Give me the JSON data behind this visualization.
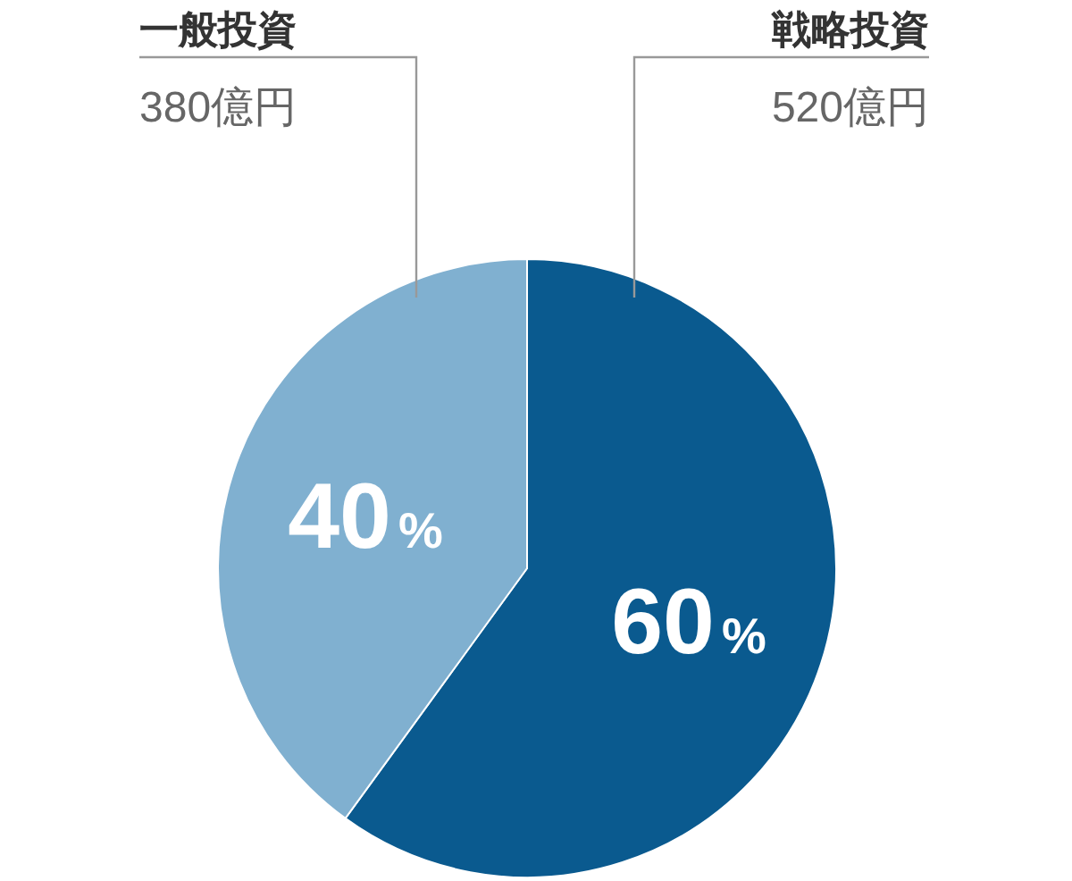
{
  "chart_data": {
    "type": "pie",
    "categories": [
      "戦略投資",
      "一般投資"
    ],
    "values": [
      60,
      40
    ],
    "colors": [
      "#0a5a8f",
      "#80b0d0"
    ],
    "value_labels": [
      "60%",
      "40%"
    ],
    "annotations": [
      "520億円",
      "380億円"
    ],
    "legend": false
  }
}
